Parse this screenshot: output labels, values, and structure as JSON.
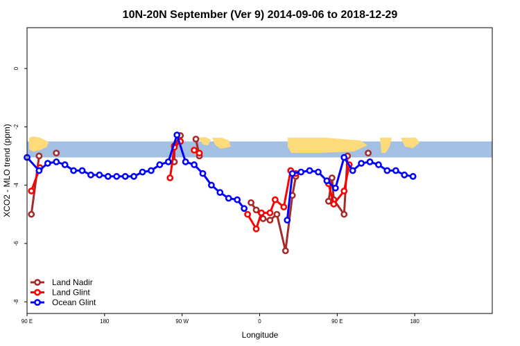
{
  "chart_data": {
    "type": "line",
    "title": "10N-20N September (Ver 9)   2014-09-06 to 2018-12-29",
    "xlabel": "Longitude",
    "ylabel": "XCO2 - MLO trend (ppm)",
    "xlim": [
      -90,
      180
    ],
    "ylim": [
      -8.4,
      1.4
    ],
    "x_ticks": [
      {
        "value": -90,
        "label": "90 E"
      },
      {
        "value": -45,
        "label": "180"
      },
      {
        "value": 0,
        "label": "90 W"
      },
      {
        "value": 45,
        "label": "0"
      },
      {
        "value": 90,
        "label": "90 E"
      },
      {
        "value": 135,
        "label": "180"
      }
    ],
    "y_ticks": [
      {
        "value": 0,
        "label": "0"
      },
      {
        "value": -2,
        "label": "-2"
      },
      {
        "value": -4,
        "label": "-4"
      },
      {
        "value": -6,
        "label": "-6"
      },
      {
        "value": -8,
        "label": "-8"
      }
    ],
    "background_map": {
      "y_range": [
        -3.05,
        -2.5
      ],
      "ocean_color": "#a3bfe1",
      "land_color": "#fddb7b"
    },
    "legend": {
      "position": "bottom-left"
    },
    "series": [
      {
        "name": "Land Nadir",
        "color": "#a52a2a",
        "points": [
          [
            -87.5,
            -5.0
          ],
          [
            -83,
            -3.0
          ],
          [
            -73,
            -2.9
          ],
          [
            -4.5,
            -3.2
          ],
          [
            -4.5,
            -2.65
          ],
          [
            -1,
            -2.3
          ],
          [
            8,
            -2.42
          ],
          [
            10,
            -3.0
          ],
          [
            40,
            -4.6
          ],
          [
            43,
            -4.85
          ],
          [
            47,
            -5.15
          ],
          [
            51,
            -5.2
          ],
          [
            55,
            -5.0
          ],
          [
            60,
            -6.25
          ],
          [
            64,
            -4.35
          ],
          [
            66,
            -3.7
          ],
          [
            85,
            -4.55
          ],
          [
            87,
            -3.75
          ],
          [
            88,
            -4.5
          ],
          [
            94,
            -5.0
          ],
          [
            96,
            -3.0
          ],
          [
            108,
            -2.9
          ]
        ]
      },
      {
        "name": "Land Glint",
        "color": "#ff0000",
        "points": [
          [
            -87.5,
            -4.2
          ],
          [
            -82.5,
            -3.4
          ],
          [
            -7,
            -3.75
          ],
          [
            -4.5,
            -2.7
          ],
          [
            -1,
            -2.5
          ],
          [
            7,
            -2.8
          ],
          [
            10,
            -2.9
          ],
          [
            38,
            -5.0
          ],
          [
            43,
            -5.5
          ],
          [
            46,
            -4.95
          ],
          [
            51,
            -4.95
          ],
          [
            54,
            -4.5
          ],
          [
            59,
            -4.75
          ],
          [
            63,
            -3.5
          ],
          [
            66,
            -3.6
          ],
          [
            85,
            -3.95
          ],
          [
            88,
            -4.65
          ],
          [
            94,
            -4.2
          ],
          [
            97,
            -3.3
          ]
        ]
      },
      {
        "name": "Ocean Glint",
        "color": "#0000ff",
        "points": [
          [
            -90,
            -3.05
          ],
          [
            -83,
            -3.5
          ],
          [
            -78,
            -3.25
          ],
          [
            -73,
            -3.2
          ],
          [
            -68,
            -3.3
          ],
          [
            -63,
            -3.5
          ],
          [
            -58,
            -3.5
          ],
          [
            -53,
            -3.65
          ],
          [
            -48,
            -3.65
          ],
          [
            -43,
            -3.7
          ],
          [
            -38,
            -3.7
          ],
          [
            -33,
            -3.7
          ],
          [
            -28,
            -3.7
          ],
          [
            -23,
            -3.55
          ],
          [
            -18,
            -3.5
          ],
          [
            -13,
            -3.3
          ],
          [
            -8,
            -3.2
          ],
          [
            -3,
            -2.28
          ],
          [
            2,
            -3.2
          ],
          [
            7,
            -3.3
          ],
          [
            12,
            -3.6
          ],
          [
            17,
            -4.0
          ],
          [
            22,
            -4.25
          ],
          [
            27,
            -4.45
          ],
          [
            32,
            -4.5
          ],
          [
            36,
            -4.8
          ],
          [
            61,
            -5.2
          ],
          [
            64,
            -3.6
          ],
          [
            69,
            -3.55
          ],
          [
            74,
            -3.5
          ],
          [
            79,
            -3.55
          ],
          [
            84,
            -3.85
          ],
          [
            89,
            -4.1
          ],
          [
            94,
            -3.05
          ],
          [
            99,
            -3.5
          ],
          [
            104,
            -3.25
          ],
          [
            109,
            -3.2
          ],
          [
            114,
            -3.3
          ],
          [
            119,
            -3.5
          ],
          [
            124,
            -3.5
          ],
          [
            129,
            -3.65
          ],
          [
            134,
            -3.7
          ]
        ]
      }
    ]
  }
}
